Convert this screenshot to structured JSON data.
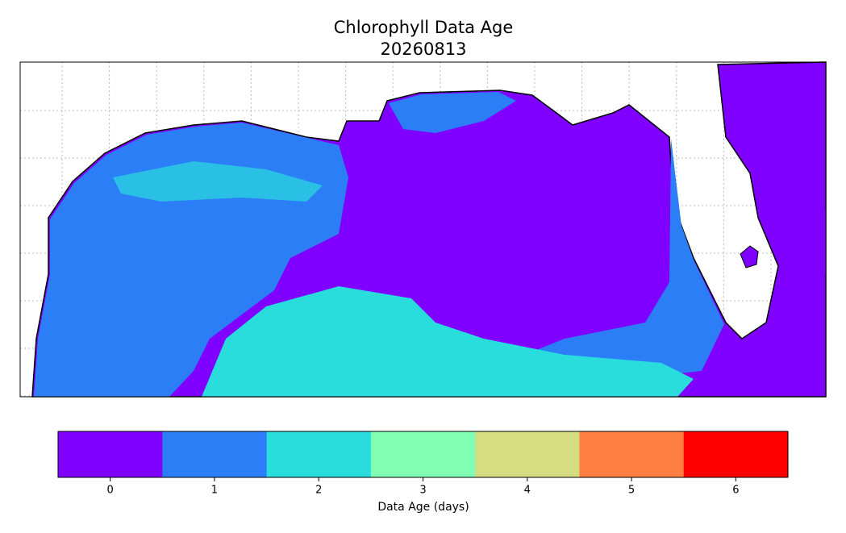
{
  "title": "Chlorophyll Data Age",
  "subtitle": "20260813",
  "colorbar": {
    "label": "Data Age (days)",
    "ticks": [
      0,
      1,
      2,
      3,
      4,
      5,
      6
    ],
    "colors": [
      "#7f00ff",
      "#2c7ef7",
      "#2adddd",
      "#80ffb4",
      "#d4dd80",
      "#ff7f41",
      "#ff0000"
    ]
  }
}
